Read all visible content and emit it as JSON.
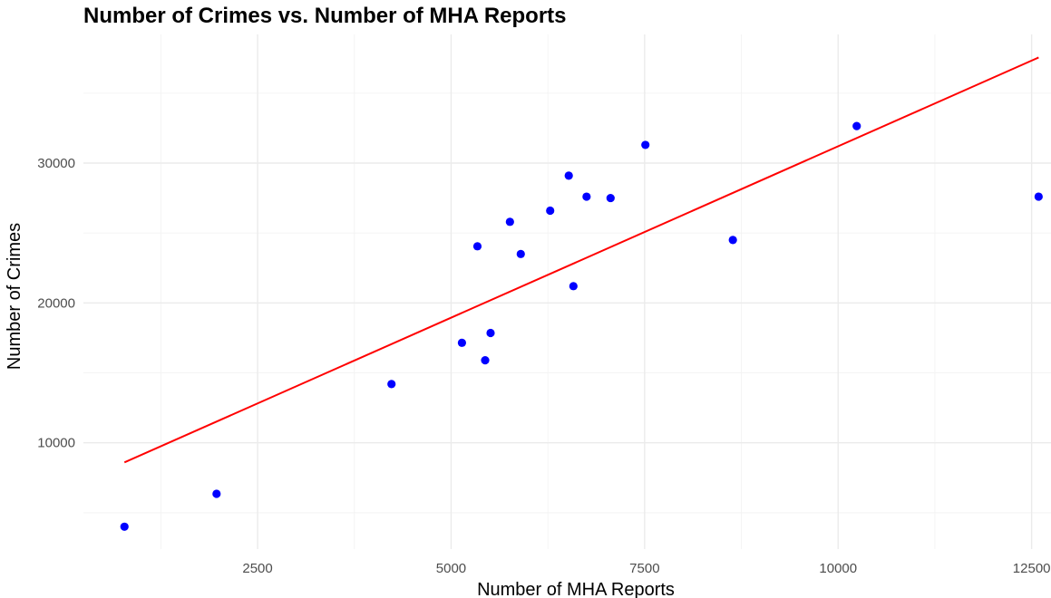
{
  "chart_data": {
    "type": "scatter",
    "title": "Number of Crimes vs. Number of MHA Reports",
    "xlabel": "Number of MHA Reports",
    "ylabel": "Number of Crimes",
    "xlim": [
      250,
      12750
    ],
    "ylim": [
      2400,
      39200
    ],
    "x_ticks": [
      2500,
      5000,
      7500,
      10000,
      12500
    ],
    "y_ticks": [
      10000,
      20000,
      30000
    ],
    "grid": true,
    "legend": "none",
    "point_color": "#0000ff",
    "line_color": "#ff0000",
    "points": [
      {
        "x": 780,
        "y": 4000
      },
      {
        "x": 1970,
        "y": 6350
      },
      {
        "x": 4230,
        "y": 14200
      },
      {
        "x": 5140,
        "y": 17150
      },
      {
        "x": 5340,
        "y": 24050
      },
      {
        "x": 5440,
        "y": 15900
      },
      {
        "x": 5510,
        "y": 17850
      },
      {
        "x": 5760,
        "y": 25800
      },
      {
        "x": 5900,
        "y": 23500
      },
      {
        "x": 6280,
        "y": 26600
      },
      {
        "x": 6520,
        "y": 29100
      },
      {
        "x": 6580,
        "y": 21200
      },
      {
        "x": 6750,
        "y": 27600
      },
      {
        "x": 7060,
        "y": 27500
      },
      {
        "x": 7510,
        "y": 31300
      },
      {
        "x": 8640,
        "y": 24500
      },
      {
        "x": 10240,
        "y": 32650
      },
      {
        "x": 12590,
        "y": 27600
      }
    ],
    "fit_line": {
      "x": [
        780,
        12590
      ],
      "y": [
        8600,
        37550
      ]
    }
  }
}
